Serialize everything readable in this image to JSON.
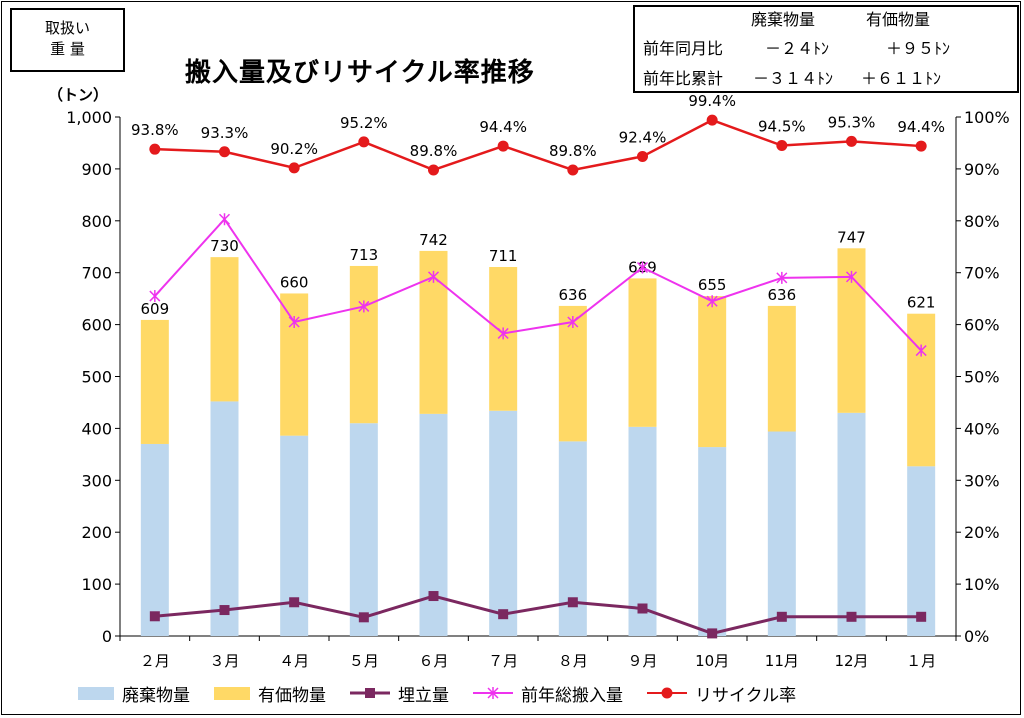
{
  "header": {
    "box_line1": "取扱い",
    "box_line2": "重 量",
    "title": "搬入量及びリサイクル率推移"
  },
  "summary": {
    "col1": "廃棄物量",
    "col2": "有価物量",
    "row1_label": "前年同月比",
    "row1_col1": "－２４ﾄﾝ",
    "row1_col2": "＋９５ﾄﾝ",
    "row2_label": "前年比累計",
    "row2_col1": "－３１４ﾄﾝ",
    "row2_col2": "＋６１１ﾄﾝ"
  },
  "colors": {
    "waste": "#bdd7ee",
    "valuable": "#ffd966",
    "landfill": "#7b2860",
    "prev_year": "#ee33ee",
    "recycle": "#e41a1c"
  },
  "chart_data": {
    "type": "bar",
    "title": "搬入量及びリサイクル率推移",
    "ylabel": "（トン）",
    "ylim": [
      0,
      1000
    ],
    "y_ticks": [
      "0",
      "100",
      "200",
      "300",
      "400",
      "500",
      "600",
      "700",
      "800",
      "900",
      "1,000"
    ],
    "y2lim": [
      0,
      100
    ],
    "y2_ticks": [
      "0%",
      "10%",
      "20%",
      "30%",
      "40%",
      "50%",
      "60%",
      "70%",
      "80%",
      "90%",
      "100%"
    ],
    "categories": [
      "２月",
      "３月",
      "４月",
      "５月",
      "６月",
      "７月",
      "８月",
      "９月",
      "10月",
      "11月",
      "12月",
      "１月"
    ],
    "totals": [
      "609",
      "730",
      "660",
      "713",
      "742",
      "711",
      "636",
      "689",
      "655",
      "636",
      "747",
      "621"
    ],
    "series": [
      {
        "name": "廃棄物量",
        "kind": "stacked-bar",
        "values": [
          370,
          452,
          386,
          410,
          428,
          434,
          375,
          403,
          364,
          394,
          430,
          327
        ]
      },
      {
        "name": "有価物量",
        "kind": "stacked-bar",
        "values": [
          239,
          278,
          274,
          303,
          314,
          277,
          261,
          286,
          291,
          242,
          317,
          294
        ]
      },
      {
        "name": "埋立量",
        "kind": "line",
        "values": [
          38,
          50,
          65,
          36,
          77,
          42,
          65,
          53,
          5,
          37,
          37,
          37
        ]
      },
      {
        "name": "前年総搬入量",
        "kind": "line",
        "values": [
          655,
          803,
          605,
          635,
          692,
          583,
          605,
          710,
          645,
          690,
          692,
          550
        ]
      },
      {
        "name": "リサイクル率",
        "kind": "line",
        "axis": "right",
        "values": [
          93.8,
          93.3,
          90.2,
          95.2,
          89.8,
          94.4,
          89.8,
          92.4,
          99.4,
          94.5,
          95.3,
          94.4
        ],
        "labels": [
          "93.8%",
          "93.3%",
          "90.2%",
          "95.2%",
          "89.8%",
          "94.4%",
          "89.8%",
          "92.4%",
          "99.4%",
          "94.5%",
          "95.3%",
          "94.4%"
        ]
      }
    ],
    "legend": [
      "廃棄物量",
      "有価物量",
      "埋立量",
      "前年総搬入量",
      "リサイクル率"
    ],
    "legend_position": "bottom",
    "grid": false
  }
}
